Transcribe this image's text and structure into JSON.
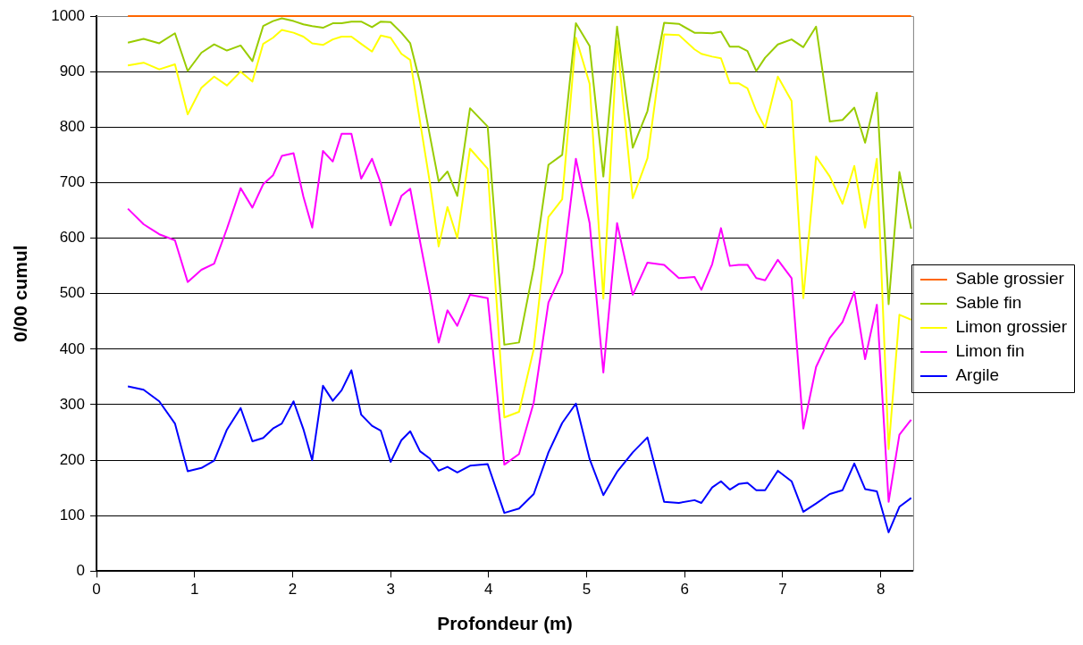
{
  "chart_data": {
    "type": "line",
    "xlabel": "Profondeur (m)",
    "ylabel": "0/00 cumul",
    "x": [
      0.32,
      0.48,
      0.64,
      0.8,
      0.93,
      1.07,
      1.2,
      1.33,
      1.47,
      1.59,
      1.7,
      1.8,
      1.89,
      2.01,
      2.11,
      2.2,
      2.31,
      2.41,
      2.5,
      2.6,
      2.7,
      2.81,
      2.9,
      3.0,
      3.11,
      3.2,
      3.3,
      3.4,
      3.49,
      3.58,
      3.68,
      3.81,
      3.99,
      4.16,
      4.31,
      4.46,
      4.61,
      4.75,
      4.89,
      5.03,
      5.17,
      5.31,
      5.47,
      5.62,
      5.79,
      5.94,
      6.1,
      6.17,
      6.28,
      6.37,
      6.46,
      6.55,
      6.64,
      6.73,
      6.82,
      6.95,
      7.09,
      7.21,
      7.34,
      7.48,
      7.61,
      7.73,
      7.84,
      7.96,
      8.08,
      8.19,
      8.31
    ],
    "series": [
      {
        "name": "Sable grossier",
        "color": "#ff6600",
        "values": [
          1000,
          1000,
          1000,
          1000,
          1000,
          1000,
          1000,
          1000,
          1000,
          1000,
          1000,
          1000,
          1000,
          1000,
          1000,
          1000,
          1000,
          1000,
          1000,
          1000,
          1000,
          1000,
          1000,
          1000,
          1000,
          1000,
          1000,
          1000,
          1000,
          1000,
          1000,
          1000,
          1000,
          1000,
          1000,
          1000,
          1000,
          1000,
          1000,
          1000,
          1000,
          1000,
          1000,
          1000,
          1000,
          1000,
          1000,
          1000,
          1000,
          1000,
          1000,
          1000,
          1000,
          1000,
          1000,
          1000,
          1000,
          1000,
          1000,
          1000,
          1000,
          1000,
          1000,
          1000,
          1000,
          1000,
          1000
        ]
      },
      {
        "name": "Sable fin",
        "color": "#99cc00",
        "values": [
          952,
          959,
          951,
          969,
          901,
          934,
          949,
          938,
          947,
          919,
          982,
          991,
          996,
          991,
          985,
          982,
          979,
          987,
          987,
          990,
          990,
          980,
          990,
          989,
          970,
          951,
          880,
          785,
          702,
          720,
          676,
          834,
          801,
          408,
          412,
          547,
          732,
          750,
          987,
          946,
          711,
          981,
          763,
          829,
          988,
          986,
          970,
          970,
          969,
          972,
          945,
          945,
          937,
          901,
          925,
          949,
          958,
          944,
          981,
          810,
          813,
          835,
          772,
          862,
          481,
          719,
          617
        ]
      },
      {
        "name": "Limon grossier",
        "color": "#ffff00",
        "values": [
          911,
          916,
          904,
          913,
          823,
          871,
          891,
          875,
          900,
          882,
          950,
          961,
          975,
          970,
          963,
          951,
          948,
          958,
          963,
          963,
          950,
          936,
          965,
          961,
          932,
          921,
          810,
          700,
          585,
          656,
          600,
          761,
          725,
          277,
          287,
          400,
          638,
          670,
          961,
          878,
          491,
          955,
          672,
          744,
          967,
          966,
          940,
          932,
          927,
          924,
          879,
          879,
          870,
          829,
          799,
          891,
          847,
          492,
          747,
          711,
          662,
          730,
          619,
          743,
          220,
          462,
          453
        ]
      },
      {
        "name": "Limon fin",
        "color": "#ff00ff",
        "values": [
          653,
          625,
          607,
          596,
          521,
          543,
          554,
          617,
          690,
          655,
          697,
          713,
          748,
          753,
          675,
          619,
          757,
          738,
          788,
          788,
          707,
          743,
          699,
          623,
          676,
          689,
          594,
          502,
          412,
          470,
          442,
          498,
          492,
          192,
          211,
          304,
          484,
          538,
          743,
          627,
          358,
          627,
          498,
          556,
          552,
          528,
          530,
          507,
          553,
          618,
          550,
          552,
          552,
          528,
          524,
          561,
          528,
          257,
          368,
          420,
          449,
          503,
          382,
          480,
          125,
          246,
          273
        ]
      },
      {
        "name": "Argile",
        "color": "#0000ff",
        "values": [
          333,
          327,
          306,
          266,
          180,
          186,
          199,
          255,
          294,
          234,
          240,
          257,
          266,
          306,
          256,
          200,
          334,
          307,
          326,
          362,
          282,
          262,
          253,
          197,
          236,
          252,
          216,
          203,
          181,
          188,
          178,
          190,
          193,
          105,
          113,
          139,
          214,
          267,
          302,
          202,
          137,
          179,
          214,
          241,
          125,
          123,
          128,
          123,
          151,
          162,
          147,
          157,
          159,
          146,
          146,
          181,
          162,
          107,
          122,
          139,
          146,
          194,
          148,
          144,
          70,
          116,
          132
        ]
      }
    ],
    "xlim": [
      0,
      8.33
    ],
    "xticks": [
      0,
      1,
      2,
      3,
      4,
      5,
      6,
      7,
      8
    ],
    "ylim": [
      0,
      1000
    ],
    "yticks": [
      0,
      100,
      200,
      300,
      400,
      500,
      600,
      700,
      800,
      900,
      1000
    ],
    "grid": "y",
    "legend": "right",
    "marker": "none",
    "line_style": "solid"
  }
}
